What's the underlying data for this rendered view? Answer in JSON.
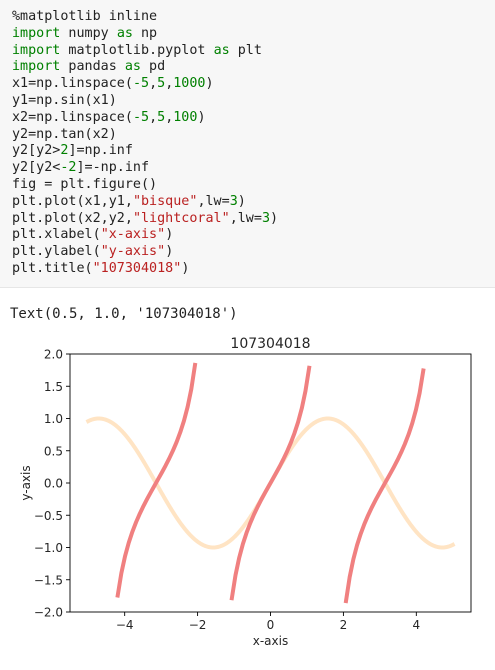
{
  "code_cell": {
    "lines": [
      [
        {
          "t": "%matplotlib inline",
          "c": ""
        }
      ],
      [
        {
          "t": "import",
          "c": "kw"
        },
        {
          "t": " numpy ",
          "c": ""
        },
        {
          "t": "as",
          "c": "kw"
        },
        {
          "t": " np",
          "c": ""
        }
      ],
      [
        {
          "t": "import",
          "c": "kw"
        },
        {
          "t": " matplotlib.pyplot ",
          "c": ""
        },
        {
          "t": "as",
          "c": "kw"
        },
        {
          "t": " plt",
          "c": ""
        }
      ],
      [
        {
          "t": "import",
          "c": "kw"
        },
        {
          "t": " pandas ",
          "c": ""
        },
        {
          "t": "as",
          "c": "kw"
        },
        {
          "t": " pd",
          "c": ""
        }
      ],
      [
        {
          "t": "x1=np.linspace(",
          "c": ""
        },
        {
          "t": "-5",
          "c": "num"
        },
        {
          "t": ",",
          "c": ""
        },
        {
          "t": "5",
          "c": "num"
        },
        {
          "t": ",",
          "c": ""
        },
        {
          "t": "1000",
          "c": "num"
        },
        {
          "t": ")",
          "c": ""
        }
      ],
      [
        {
          "t": "y1=np.sin(x1)",
          "c": ""
        }
      ],
      [
        {
          "t": "x2=np.linspace(",
          "c": ""
        },
        {
          "t": "-5",
          "c": "num"
        },
        {
          "t": ",",
          "c": ""
        },
        {
          "t": "5",
          "c": "num"
        },
        {
          "t": ",",
          "c": ""
        },
        {
          "t": "100",
          "c": "num"
        },
        {
          "t": ")",
          "c": ""
        }
      ],
      [
        {
          "t": "y2=np.tan(x2)",
          "c": ""
        }
      ],
      [
        {
          "t": "y2[y2>",
          "c": ""
        },
        {
          "t": "2",
          "c": "num"
        },
        {
          "t": "]=np.inf",
          "c": ""
        }
      ],
      [
        {
          "t": "y2[y2<",
          "c": ""
        },
        {
          "t": "-2",
          "c": "num"
        },
        {
          "t": "]=-np.inf",
          "c": ""
        }
      ],
      [
        {
          "t": "fig = plt.figure()",
          "c": ""
        }
      ],
      [
        {
          "t": "plt.plot(x1,y1,",
          "c": ""
        },
        {
          "t": "\"bisque\"",
          "c": "str"
        },
        {
          "t": ",lw=",
          "c": ""
        },
        {
          "t": "3",
          "c": "num"
        },
        {
          "t": ")",
          "c": ""
        }
      ],
      [
        {
          "t": "plt.plot(x2,y2,",
          "c": ""
        },
        {
          "t": "\"lightcoral\"",
          "c": "str"
        },
        {
          "t": ",lw=",
          "c": ""
        },
        {
          "t": "3",
          "c": "num"
        },
        {
          "t": ")",
          "c": ""
        }
      ],
      [
        {
          "t": "plt.xlabel(",
          "c": ""
        },
        {
          "t": "\"x-axis\"",
          "c": "str"
        },
        {
          "t": ")",
          "c": ""
        }
      ],
      [
        {
          "t": "plt.ylabel(",
          "c": ""
        },
        {
          "t": "\"y-axis\"",
          "c": "str"
        },
        {
          "t": ")",
          "c": ""
        }
      ],
      [
        {
          "t": "plt.title(",
          "c": ""
        },
        {
          "t": "\"107304018\"",
          "c": "str"
        },
        {
          "t": ")",
          "c": ""
        }
      ]
    ]
  },
  "output": {
    "text": "Text(0.5, 1.0, '107304018')"
  },
  "colors": {
    "keyword": "#008000",
    "string": "#ba2121",
    "series_sin": "#ffe4c4",
    "series_tan": "#f08080"
  },
  "chart_data": {
    "type": "line",
    "title": "107304018",
    "xlabel": "x-axis",
    "ylabel": "y-axis",
    "xlim": [
      -5.5,
      5.5
    ],
    "ylim": [
      -2.0,
      2.0
    ],
    "xticks": [
      -4,
      -2,
      0,
      2,
      4
    ],
    "xtick_labels": [
      "−4",
      "−2",
      "0",
      "2",
      "4"
    ],
    "yticks": [
      -2.0,
      -1.5,
      -1.0,
      -0.5,
      0.0,
      0.5,
      1.0,
      1.5,
      2.0
    ],
    "ytick_labels": [
      "−2.0",
      "−1.5",
      "−1.0",
      "−0.5",
      "0.0",
      "0.5",
      "1.0",
      "1.5",
      "2.0"
    ],
    "grid": false,
    "series": [
      {
        "function": "sin",
        "color": "bisque",
        "linewidth": 3,
        "x_range": [
          -5,
          5
        ],
        "n_points": 1000
      },
      {
        "function": "tan",
        "color": "lightcoral",
        "linewidth": 3,
        "x_range": [
          -5,
          5
        ],
        "n_points": 100,
        "clip_abs": 2
      }
    ]
  }
}
